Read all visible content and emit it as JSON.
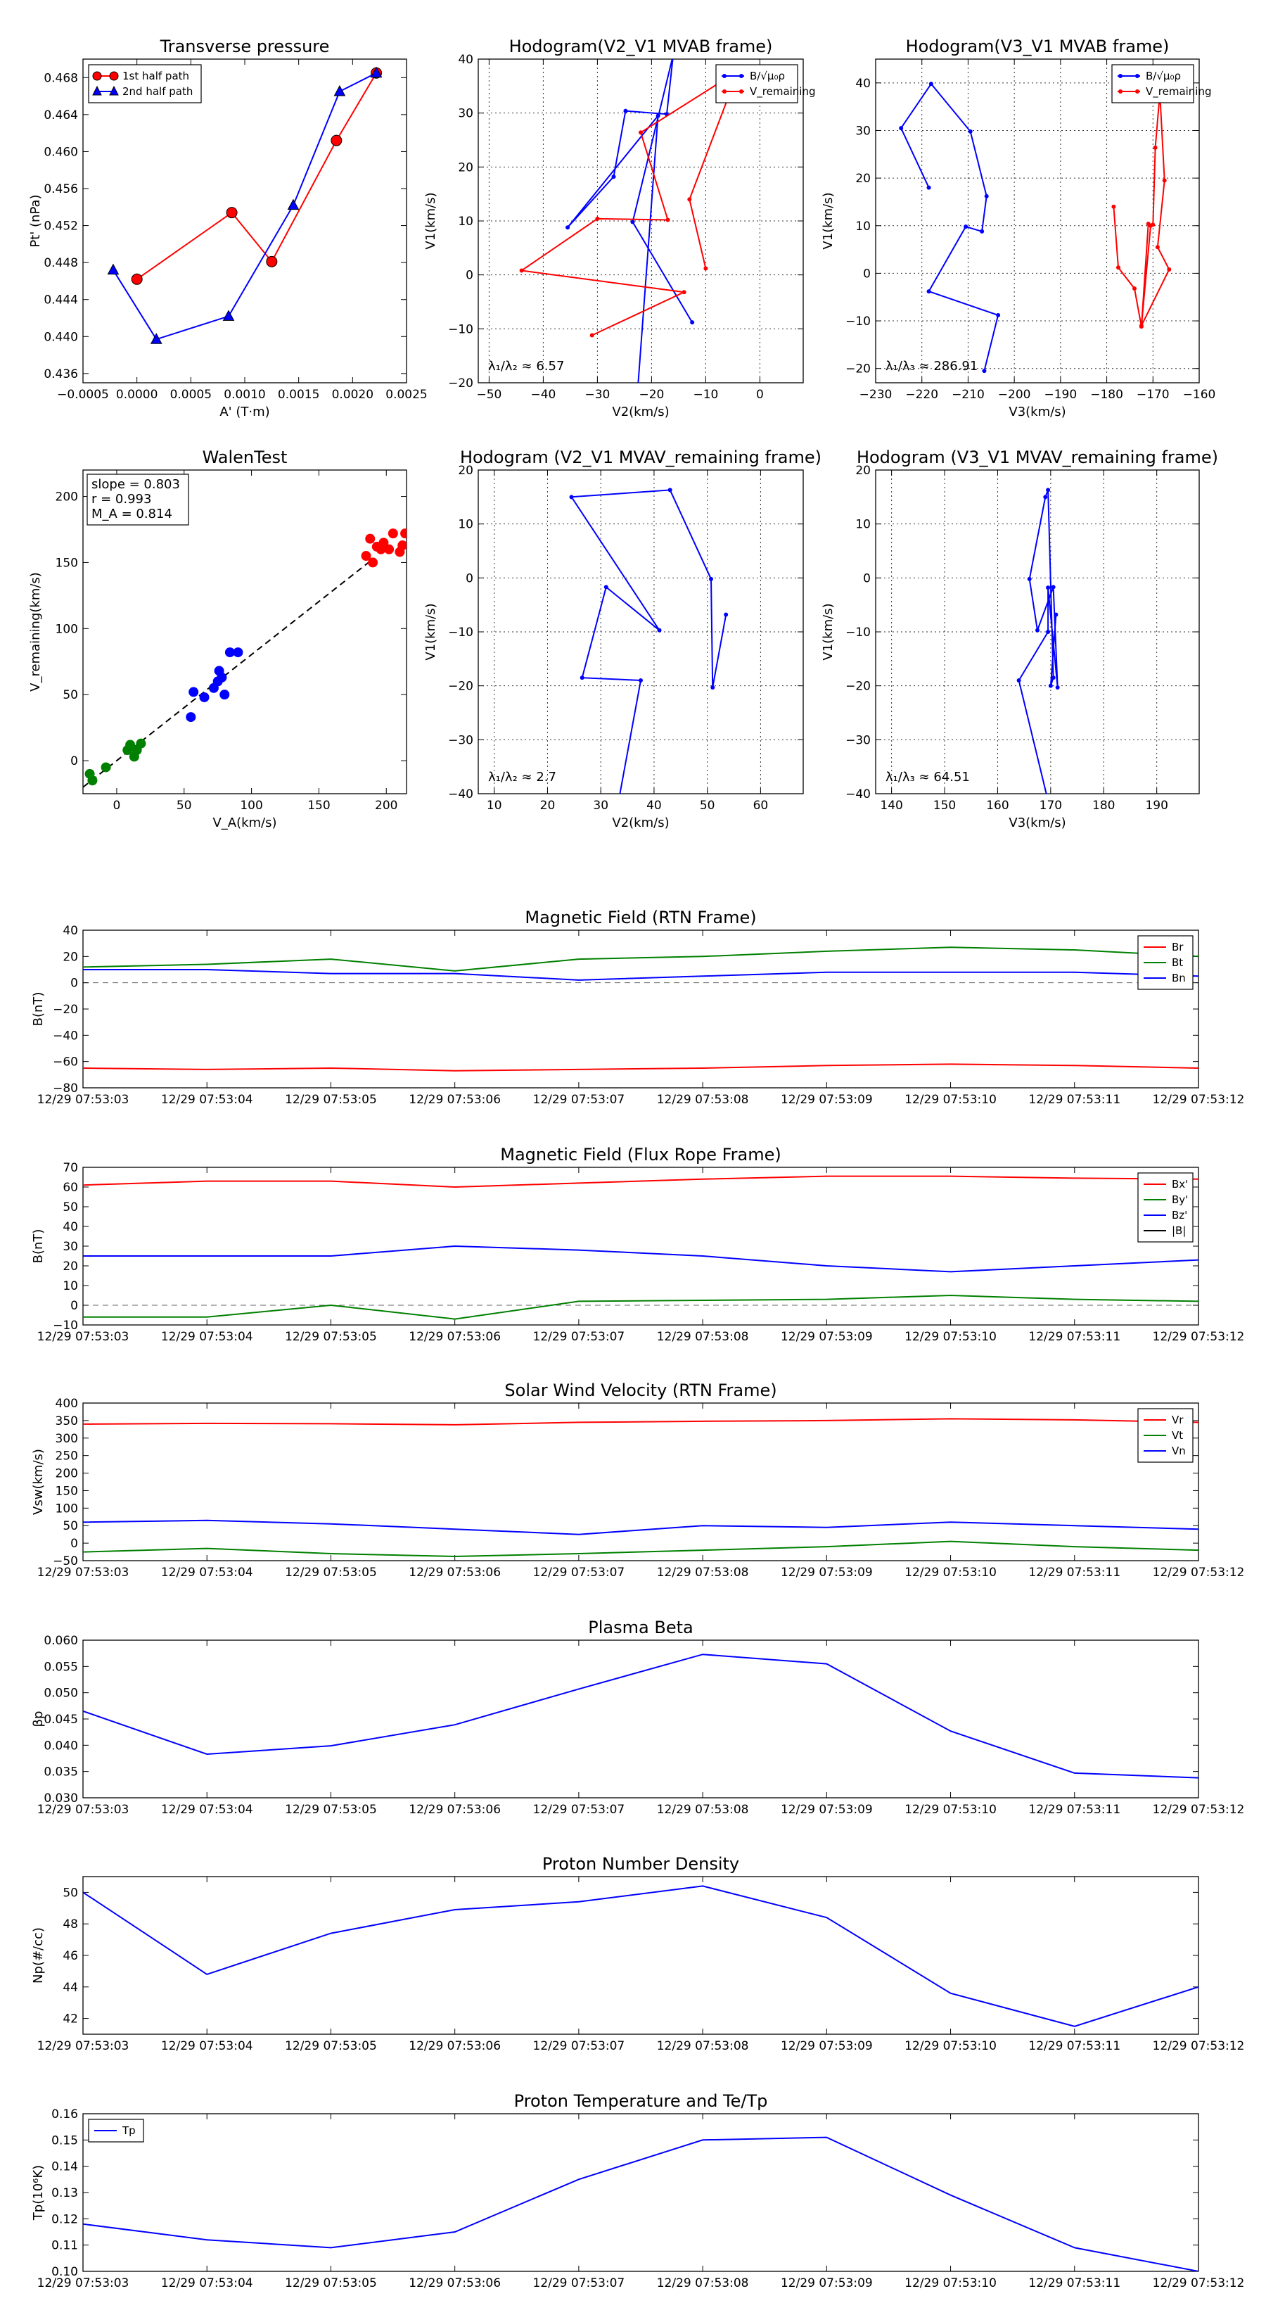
{
  "time_ticks": [
    "12/29 07:53:03",
    "12/29 07:53:04",
    "12/29 07:53:05",
    "12/29 07:53:06",
    "12/29 07:53:07",
    "12/29 07:53:08",
    "12/29 07:53:09",
    "12/29 07:53:10",
    "12/29 07:53:11",
    "12/29 07:53:12"
  ],
  "colors": {
    "red": "#ff0000",
    "green": "#008000",
    "blue": "#0000ff",
    "black": "#000000",
    "darkred": "#aa0000"
  },
  "chart_data": [
    {
      "id": "tp",
      "type": "scatter-line",
      "title": "Transverse pressure",
      "xlabel": "A' (T·m)",
      "ylabel": "Pt' (nPa)",
      "xlim": [
        -0.0005,
        0.0025
      ],
      "ylim": [
        0.435,
        0.47
      ],
      "xticks": [
        -0.0005,
        0,
        0.0005,
        0.001,
        0.0015,
        0.002,
        0.0025
      ],
      "xtick_labels": [
        "−0.0005",
        "0.0000",
        "0.0005",
        "0.0010",
        "0.0015",
        "0.0020",
        "0.0025"
      ],
      "yticks": [
        0.436,
        0.44,
        0.444,
        0.448,
        0.452,
        0.456,
        0.46,
        0.464,
        0.468
      ],
      "ytick_labels": [
        "0.436",
        "0.440",
        "0.444",
        "0.448",
        "0.452",
        "0.456",
        "0.460",
        "0.464",
        "0.468"
      ],
      "grid": false,
      "legend": "top-left",
      "series": [
        {
          "name": "1st half path",
          "color": "red",
          "marker": "circle",
          "x": [
            0.0,
            0.00088,
            0.00125,
            0.00185,
            0.00222
          ],
          "y": [
            0.4462,
            0.4534,
            0.4481,
            0.4612,
            0.4685
          ]
        },
        {
          "name": "2nd half path",
          "color": "blue",
          "marker": "triangle",
          "x": [
            -0.00022,
            0.00018,
            0.00085,
            0.00145,
            0.00188,
            0.00222
          ],
          "y": [
            0.4472,
            0.4397,
            0.4422,
            0.4542,
            0.4665,
            0.4685
          ]
        }
      ]
    },
    {
      "id": "h21",
      "type": "line-marker",
      "title": "Hodogram(V2_V1 MVAB frame)",
      "xlabel": "V2(km/s)",
      "ylabel": "V1(km/s)",
      "xlim": [
        -52,
        8
      ],
      "ylim": [
        -20,
        40
      ],
      "xticks": [
        -50,
        -40,
        -30,
        -20,
        -10,
        0
      ],
      "xtick_labels": [
        "−50",
        "−40",
        "−30",
        "−20",
        "−10",
        "0"
      ],
      "yticks": [
        -20,
        -10,
        0,
        10,
        20,
        30,
        40
      ],
      "ytick_labels": [
        "−20",
        "−10",
        "0",
        "10",
        "20",
        "30",
        "40"
      ],
      "grid": true,
      "legend": "top-right",
      "annotation": "λ₁/λ₂ ≈ 6.57",
      "series": [
        {
          "name": "B/√μ₀ρ",
          "color": "blue",
          "x": [
            -22.5,
            -18.8,
            -35.5,
            -27,
            -24.8,
            -17.2,
            -16,
            -23.5,
            -12.5
          ],
          "y": [
            -20.5,
            29.5,
            8.8,
            18.2,
            30.4,
            29.8,
            40.8,
            9.8,
            -8.8
          ]
        },
        {
          "name": "V_remaining",
          "color": "red",
          "x": [
            -31,
            -14,
            -44,
            -30,
            -17,
            -22,
            -4,
            -13,
            -10
          ],
          "y": [
            -11.2,
            -3.2,
            0.8,
            10.4,
            10.2,
            26.4,
            37.8,
            14,
            1.2
          ]
        }
      ]
    },
    {
      "id": "h31",
      "type": "line-marker",
      "title": "Hodogram(V3_V1 MVAB frame)",
      "xlabel": "V3(km/s)",
      "ylabel": "V1(km/s)",
      "xlim": [
        -230,
        -160
      ],
      "ylim": [
        -23,
        45
      ],
      "xticks": [
        -230,
        -220,
        -210,
        -200,
        -190,
        -180,
        -170,
        -160
      ],
      "xtick_labels": [
        "−230",
        "−220",
        "−210",
        "−200",
        "−190",
        "−180",
        "−170",
        "−160"
      ],
      "yticks": [
        -20,
        -10,
        0,
        10,
        20,
        30,
        40
      ],
      "ytick_labels": [
        "−20",
        "−10",
        "0",
        "10",
        "20",
        "30",
        "40"
      ],
      "grid": true,
      "legend": "top-right",
      "annotation": "λ₁/λ₃ ≈ 286.91",
      "series": [
        {
          "name": "B/√μ₀ρ",
          "color": "blue",
          "x": [
            -218.5,
            -224.5,
            -218,
            -209.5,
            -206,
            -207,
            -210.5,
            -218.5,
            -203.5,
            -206.5
          ],
          "y": [
            18,
            30.5,
            39.8,
            29.8,
            16.2,
            8.8,
            9.8,
            -3.8,
            -8.8,
            -20.5
          ]
        },
        {
          "name": "V_remaining",
          "color": "red",
          "x": [
            -178.5,
            -177.5,
            -174,
            -172.5,
            -171,
            -170,
            -169.5,
            -168.5,
            -167.5,
            -169,
            -166.5,
            -172.5,
            -170.5
          ],
          "y": [
            14,
            1.2,
            -3.2,
            -11.2,
            10.4,
            10.2,
            26.4,
            37.8,
            19.5,
            5.5,
            0.8,
            -11,
            10
          ]
        }
      ]
    },
    {
      "id": "walen",
      "type": "scatter",
      "title": "WalenTest",
      "xlabel": "V_A(km/s)",
      "ylabel": "V_remaining(km/s)",
      "xlim": [
        -25,
        215
      ],
      "ylim": [
        -25,
        220
      ],
      "xticks": [
        0,
        50,
        100,
        150,
        200
      ],
      "xtick_labels": [
        "0",
        "50",
        "100",
        "150",
        "200"
      ],
      "yticks": [
        0,
        50,
        100,
        150,
        200
      ],
      "ytick_labels": [
        "0",
        "50",
        "100",
        "150",
        "200"
      ],
      "grid": false,
      "stats": [
        "slope = 0.803",
        "r = 0.993",
        "M_A = 0.814"
      ],
      "fit": {
        "slope": 0.803,
        "intercept": 0,
        "x_range": [
          -25,
          190
        ]
      },
      "series": [
        {
          "name": "green",
          "color": "green",
          "x": [
            -20,
            -18,
            -8,
            8,
            10,
            13,
            18,
            15
          ],
          "y": [
            -10,
            -15,
            -5,
            8,
            12,
            3,
            13,
            8
          ]
        },
        {
          "name": "blue",
          "color": "blue",
          "x": [
            55,
            57,
            65,
            72,
            75,
            78,
            80,
            84,
            90,
            76
          ],
          "y": [
            33,
            52,
            48,
            55,
            60,
            63,
            50,
            82,
            82,
            68
          ]
        },
        {
          "name": "red",
          "color": "red",
          "x": [
            185,
            188,
            190,
            193,
            196,
            198,
            202,
            205,
            210,
            214,
            212
          ],
          "y": [
            155,
            168,
            150,
            162,
            160,
            165,
            160,
            172,
            158,
            172,
            163
          ]
        }
      ]
    },
    {
      "id": "hr21",
      "type": "line-marker",
      "title": "Hodogram (V2_V1 MVAV_remaining frame)",
      "xlabel": "V2(km/s)",
      "ylabel": "V1(km/s)",
      "xlim": [
        7,
        68
      ],
      "ylim": [
        -40,
        20
      ],
      "xticks": [
        10,
        20,
        30,
        40,
        50,
        60
      ],
      "xtick_labels": [
        "10",
        "20",
        "30",
        "40",
        "50",
        "60"
      ],
      "yticks": [
        -40,
        -30,
        -20,
        -10,
        0,
        10,
        20
      ],
      "ytick_labels": [
        "−40",
        "−30",
        "−20",
        "−10",
        "0",
        "10",
        "20"
      ],
      "grid": true,
      "annotation": "λ₁/λ₂ ≈ 2.7",
      "series": [
        {
          "name": "B",
          "color": "blue",
          "x": [
            53.5,
            51,
            50.7,
            43,
            24.5,
            41,
            31,
            26.5,
            37.5,
            33.5
          ],
          "y": [
            -6.8,
            -20.3,
            -0.2,
            16.3,
            15,
            -9.7,
            -1.7,
            -18.5,
            -19,
            -40.5
          ]
        }
      ]
    },
    {
      "id": "hr31",
      "type": "line-marker",
      "title": "Hodogram (V3_V1 MVAV_remaining frame)",
      "xlabel": "V3(km/s)",
      "ylabel": "V1(km/s)",
      "xlim": [
        137,
        198
      ],
      "ylim": [
        -40,
        20
      ],
      "xticks": [
        140,
        150,
        160,
        170,
        180,
        190
      ],
      "xtick_labels": [
        "140",
        "150",
        "160",
        "170",
        "180",
        "190"
      ],
      "yticks": [
        -40,
        -30,
        -20,
        -10,
        0,
        10,
        20
      ],
      "ytick_labels": [
        "−40",
        "−30",
        "−20",
        "−10",
        "0",
        "10",
        "20"
      ],
      "grid": true,
      "annotation": "λ₁/λ₃ ≈ 64.51",
      "series": [
        {
          "name": "B",
          "color": "blue",
          "x": [
            171,
            170,
            170.5,
            169.5,
            169,
            166,
            167.5,
            170.5,
            171.3,
            169.5,
            169.5,
            164,
            169.3
          ],
          "y": [
            -6.8,
            -20,
            -18.5,
            16.3,
            15,
            -0.2,
            -9.7,
            -1.7,
            -20.3,
            -1.8,
            -10,
            -19,
            -40.5
          ]
        }
      ]
    },
    {
      "id": "mag_rtn",
      "type": "line",
      "title": "Magnetic Field (RTN Frame)",
      "xlabel": "",
      "ylabel": "B(nT)",
      "ylim": [
        -80,
        40
      ],
      "yticks": [
        -80,
        -60,
        -40,
        -20,
        0,
        20,
        40
      ],
      "ytick_labels": [
        "−80",
        "−60",
        "−40",
        "−20",
        "0",
        "20",
        "40"
      ],
      "grid": false,
      "legend": "top-right",
      "zero_line": true,
      "series": [
        {
          "name": "Br",
          "color": "red",
          "values": [
            -65,
            -66,
            -65,
            -67,
            -66,
            -65,
            -63,
            -62,
            -63,
            -65
          ]
        },
        {
          "name": "Bt",
          "color": "green",
          "values": [
            12,
            14,
            18,
            9,
            18,
            20,
            24,
            27,
            25,
            20
          ]
        },
        {
          "name": "Bn",
          "color": "blue",
          "values": [
            10,
            10,
            7,
            7,
            2,
            5,
            8,
            8,
            8,
            5
          ]
        }
      ]
    },
    {
      "id": "mag_fr",
      "type": "line",
      "title": "Magnetic Field (Flux Rope Frame)",
      "xlabel": "",
      "ylabel": "B(nT)",
      "ylim": [
        -10,
        70
      ],
      "yticks": [
        -10,
        0,
        10,
        20,
        30,
        40,
        50,
        60,
        70
      ],
      "ytick_labels": [
        "−10",
        "0",
        "10",
        "20",
        "30",
        "40",
        "50",
        "60",
        "70"
      ],
      "grid": false,
      "legend": "top-right",
      "zero_line": true,
      "series": [
        {
          "name": "Bx'",
          "color": "red",
          "values": [
            61,
            63,
            63,
            60,
            62,
            64,
            65.5,
            65.5,
            64.5,
            64
          ]
        },
        {
          "name": "By'",
          "color": "green",
          "values": [
            -6,
            -6,
            0,
            -7,
            2,
            2.5,
            3,
            5,
            3,
            2
          ]
        },
        {
          "name": "Bz'",
          "color": "blue",
          "values": [
            25,
            25,
            25,
            30,
            28,
            25,
            20,
            17,
            20,
            23
          ]
        },
        {
          "name": "|B|",
          "color": "black",
          "values": []
        }
      ]
    },
    {
      "id": "vsw",
      "type": "line",
      "title": "Solar Wind Velocity (RTN Frame)",
      "xlabel": "",
      "ylabel": "Vsw(km/s)",
      "ylim": [
        -50,
        400
      ],
      "yticks": [
        -50,
        0,
        50,
        100,
        150,
        200,
        250,
        300,
        350,
        400
      ],
      "ytick_labels": [
        "−50",
        "0",
        "50",
        "100",
        "150",
        "200",
        "250",
        "300",
        "350",
        "400"
      ],
      "grid": false,
      "legend": "top-right",
      "series": [
        {
          "name": "Vr",
          "color": "red",
          "values": [
            340,
            342,
            341,
            338,
            345,
            348,
            350,
            355,
            352,
            345
          ]
        },
        {
          "name": "Vt",
          "color": "green",
          "values": [
            -25,
            -15,
            -30,
            -38,
            -30,
            -20,
            -10,
            5,
            -10,
            -20
          ]
        },
        {
          "name": "Vn",
          "color": "blue",
          "values": [
            60,
            65,
            55,
            40,
            25,
            50,
            45,
            60,
            50,
            40
          ]
        }
      ]
    },
    {
      "id": "beta",
      "type": "line",
      "title": "Plasma Beta",
      "xlabel": "",
      "ylabel": "βp",
      "ylim": [
        0.03,
        0.06
      ],
      "yticks": [
        0.03,
        0.035,
        0.04,
        0.045,
        0.05,
        0.055,
        0.06
      ],
      "ytick_labels": [
        "0.030",
        "0.035",
        "0.040",
        "0.045",
        "0.050",
        "0.055",
        "0.060"
      ],
      "grid": false,
      "series": [
        {
          "name": "beta",
          "color": "blue",
          "values": [
            0.0465,
            0.0383,
            0.0399,
            0.0439,
            0.0507,
            0.0573,
            0.0555,
            0.0427,
            0.0347,
            0.0338
          ]
        }
      ]
    },
    {
      "id": "np",
      "type": "line",
      "title": "Proton Number Density",
      "xlabel": "",
      "ylabel": "Np(#/cc)",
      "ylim": [
        41,
        51
      ],
      "yticks": [
        42,
        44,
        46,
        48,
        50
      ],
      "ytick_labels": [
        "42",
        "44",
        "46",
        "48",
        "50"
      ],
      "grid": false,
      "series": [
        {
          "name": "Np",
          "color": "blue",
          "values": [
            50.0,
            44.8,
            47.4,
            48.9,
            49.4,
            50.4,
            48.4,
            43.6,
            41.5,
            44.0
          ]
        }
      ]
    },
    {
      "id": "tp_temp",
      "type": "line",
      "title": "Proton Temperature and Te/Tp",
      "xlabel": "",
      "ylabel": "Tp(10⁶K)",
      "ylim": [
        0.1,
        0.16
      ],
      "yticks": [
        0.1,
        0.11,
        0.12,
        0.13,
        0.14,
        0.15,
        0.16
      ],
      "ytick_labels": [
        "0.10",
        "0.11",
        "0.12",
        "0.13",
        "0.14",
        "0.15",
        "0.16"
      ],
      "grid": false,
      "legend": "top-left",
      "series": [
        {
          "name": "Tp",
          "color": "blue",
          "values": [
            0.118,
            0.112,
            0.109,
            0.115,
            0.135,
            0.15,
            0.151,
            0.129,
            0.109,
            0.1
          ]
        }
      ]
    }
  ]
}
